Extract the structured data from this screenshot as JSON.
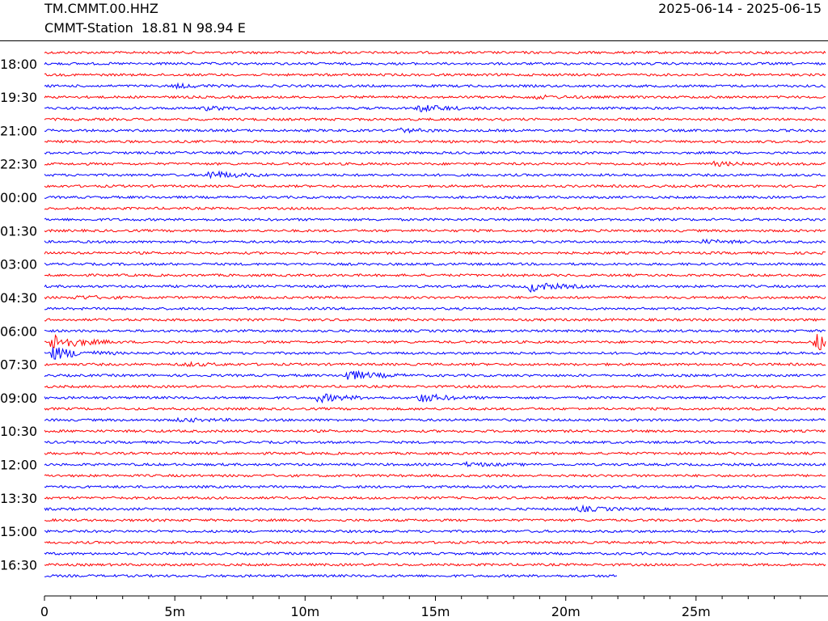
{
  "header": {
    "station_code": "TM.CMMT.00.HHZ",
    "station_info": "CMMT-Station  18.81 N 98.94 E",
    "date_range": "2025-06-14 - 2025-06-15"
  },
  "colors": {
    "trace_a": "#ff0000",
    "trace_b": "#0000ff",
    "axis": "#000000"
  },
  "chart_data": {
    "type": "line",
    "title": "",
    "xlabel": "",
    "ylabel": "",
    "xlim": [
      0,
      30
    ],
    "x_tick_labels": [
      "0",
      "5m",
      "10m",
      "15m",
      "20m",
      "25m"
    ],
    "x_tick_values": [
      0,
      5,
      10,
      15,
      20,
      25
    ],
    "y_tick_labels": [
      "18:00",
      "19:30",
      "21:00",
      "22:30",
      "00:00",
      "01:30",
      "03:00",
      "04:30",
      "06:00",
      "07:30",
      "09:00",
      "10:30",
      "12:00",
      "13:30",
      "15:00",
      "16:30"
    ],
    "trace_count": 48,
    "last_trace_end_minutes": 22,
    "events": [
      {
        "trace": 3,
        "minute": 5.0,
        "amp": 2
      },
      {
        "trace": 5,
        "minute": 6.2,
        "amp": 2
      },
      {
        "trace": 5,
        "minute": 14.4,
        "amp": 4
      },
      {
        "trace": 4,
        "minute": 18.7,
        "amp": 2
      },
      {
        "trace": 7,
        "minute": 13.6,
        "amp": 2
      },
      {
        "trace": 11,
        "minute": 6.3,
        "amp": 5
      },
      {
        "trace": 10,
        "minute": 25.7,
        "amp": 2
      },
      {
        "trace": 17,
        "minute": 25.3,
        "amp": 2
      },
      {
        "trace": 21,
        "minute": 18.6,
        "amp": 6
      },
      {
        "trace": 22,
        "minute": 1.2,
        "amp": 2
      },
      {
        "trace": 26,
        "minute": 0.3,
        "amp": 10
      },
      {
        "trace": 26,
        "minute": 29.6,
        "amp": 10
      },
      {
        "trace": 27,
        "minute": 0.3,
        "amp": 8
      },
      {
        "trace": 28,
        "minute": 5.3,
        "amp": 2
      },
      {
        "trace": 29,
        "minute": 11.6,
        "amp": 6
      },
      {
        "trace": 31,
        "minute": 10.5,
        "amp": 5
      },
      {
        "trace": 31,
        "minute": 14.4,
        "amp": 5
      },
      {
        "trace": 33,
        "minute": 5.2,
        "amp": 2
      },
      {
        "trace": 37,
        "minute": 16.2,
        "amp": 2
      },
      {
        "trace": 41,
        "minute": 20.5,
        "amp": 3
      }
    ]
  }
}
